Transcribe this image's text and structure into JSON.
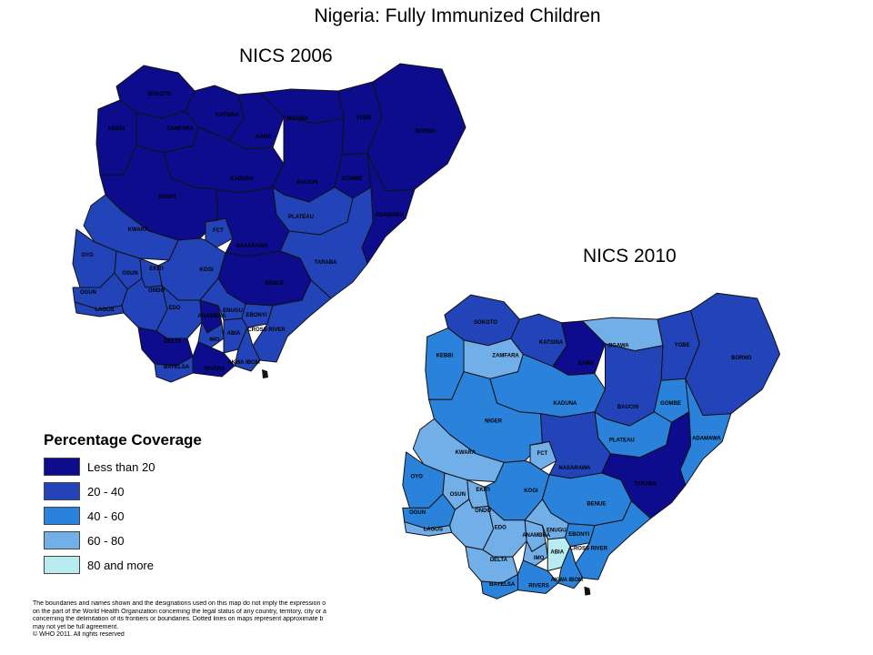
{
  "title": "Nigeria: Fully Immunized Children",
  "maps": [
    {
      "label": "NICS 2006",
      "states": [
        {
          "name": "SOKOTO",
          "cls": 0
        },
        {
          "name": "KEBBI",
          "cls": 0
        },
        {
          "name": "ZAMFARA",
          "cls": 0
        },
        {
          "name": "KATSINA",
          "cls": 0
        },
        {
          "name": "KANO",
          "cls": 0
        },
        {
          "name": "JIGAWA",
          "cls": 0
        },
        {
          "name": "YOBE",
          "cls": 0
        },
        {
          "name": "BORNO",
          "cls": 0
        },
        {
          "name": "KADUNA",
          "cls": 0
        },
        {
          "name": "BAUCHI",
          "cls": 0
        },
        {
          "name": "GOMBE",
          "cls": 0
        },
        {
          "name": "NIGER",
          "cls": 0
        },
        {
          "name": "ADAMAWA",
          "cls": 0
        },
        {
          "name": "PLATEAU",
          "cls": 1
        },
        {
          "name": "FCT",
          "cls": 1
        },
        {
          "name": "NASARAWA",
          "cls": 0
        },
        {
          "name": "TARABA",
          "cls": 1
        },
        {
          "name": "KWARA",
          "cls": 1
        },
        {
          "name": "OYO",
          "cls": 1
        },
        {
          "name": "KOGI",
          "cls": 1
        },
        {
          "name": "BENUE",
          "cls": 0
        },
        {
          "name": "OSUN",
          "cls": 1
        },
        {
          "name": "EKITI",
          "cls": 1
        },
        {
          "name": "OGUN",
          "cls": 1
        },
        {
          "name": "ONDO",
          "cls": 1
        },
        {
          "name": "EDO",
          "cls": 1
        },
        {
          "name": "LAGOS",
          "cls": 1
        },
        {
          "name": "ANAMBRA",
          "cls": 0
        },
        {
          "name": "ENUGU",
          "cls": 1
        },
        {
          "name": "EBONYI",
          "cls": 1
        },
        {
          "name": "DELTA",
          "cls": 0
        },
        {
          "name": "IMO",
          "cls": 1
        },
        {
          "name": "ABIA",
          "cls": 1
        },
        {
          "name": "CROSS RIVER",
          "cls": 1
        },
        {
          "name": "AKWA IBOM",
          "cls": 1
        },
        {
          "name": "BAYELSA",
          "cls": 1
        },
        {
          "name": "RIVERS",
          "cls": 0
        }
      ]
    },
    {
      "label": "NICS 2010",
      "states": [
        {
          "name": "SOKOTO",
          "cls": 1
        },
        {
          "name": "KEBBI",
          "cls": 2
        },
        {
          "name": "ZAMFARA",
          "cls": 3
        },
        {
          "name": "KATSINA",
          "cls": 1
        },
        {
          "name": "KANO",
          "cls": 0
        },
        {
          "name": "JIGAWA",
          "cls": 3
        },
        {
          "name": "YOBE",
          "cls": 1
        },
        {
          "name": "BORNO",
          "cls": 1
        },
        {
          "name": "KADUNA",
          "cls": 2
        },
        {
          "name": "BAUCHI",
          "cls": 1
        },
        {
          "name": "GOMBE",
          "cls": 2
        },
        {
          "name": "NIGER",
          "cls": 2
        },
        {
          "name": "ADAMAWA",
          "cls": 2
        },
        {
          "name": "PLATEAU",
          "cls": 2
        },
        {
          "name": "FCT",
          "cls": 3
        },
        {
          "name": "NASARAWA",
          "cls": 1
        },
        {
          "name": "TARABA",
          "cls": 0
        },
        {
          "name": "KWARA",
          "cls": 3
        },
        {
          "name": "OYO",
          "cls": 2
        },
        {
          "name": "KOGI",
          "cls": 2
        },
        {
          "name": "BENUE",
          "cls": 2
        },
        {
          "name": "OSUN",
          "cls": 3
        },
        {
          "name": "EKITI",
          "cls": 3
        },
        {
          "name": "OGUN",
          "cls": 2
        },
        {
          "name": "ONDO",
          "cls": 3
        },
        {
          "name": "EDO",
          "cls": 3
        },
        {
          "name": "LAGOS",
          "cls": 3
        },
        {
          "name": "ANAMBRA",
          "cls": 3
        },
        {
          "name": "ENUGU",
          "cls": 3
        },
        {
          "name": "EBONYI",
          "cls": 2
        },
        {
          "name": "DELTA",
          "cls": 3
        },
        {
          "name": "IMO",
          "cls": 3
        },
        {
          "name": "ABIA",
          "cls": 4
        },
        {
          "name": "CROSS RIVER",
          "cls": 2
        },
        {
          "name": "AKWA IBOM",
          "cls": 2
        },
        {
          "name": "BAYELSA",
          "cls": 2
        },
        {
          "name": "RIVERS",
          "cls": 2
        }
      ]
    }
  ],
  "legend": {
    "title": "Percentage Coverage",
    "items": [
      {
        "label": "Less than 20",
        "color": "#0c0c8c"
      },
      {
        "label": "20 - 40",
        "color": "#2244b8"
      },
      {
        "label": "40 - 60",
        "color": "#2b82da"
      },
      {
        "label": "60 - 80",
        "color": "#72aee8"
      },
      {
        "label": "80 and more",
        "color": "#b8ecf0"
      }
    ]
  },
  "disclaimer": [
    "The boundaries and names shown and the designations used on this map do not imply the expression o",
    "on the part of the World Health Organization concerning the legal status of any country, territory, city or a",
    "concerning the delimitation of its frontiers or boundaries. Dotted lines on maps represent approximate b",
    "may not yet be full agreement.",
    "© WHO 2011. All rights reserved"
  ]
}
